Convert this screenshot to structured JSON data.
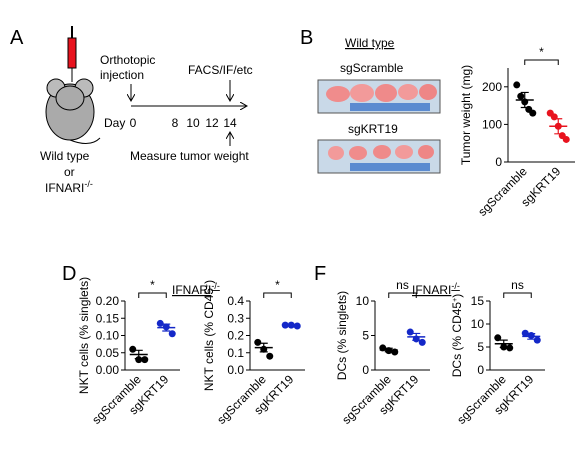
{
  "panels": {
    "A": {
      "label": "A",
      "injection_1": "Orthotopic",
      "injection_2": "injection",
      "harvest": "FACS/IF/etc",
      "day": "Day",
      "days": [
        "0",
        "8",
        "10",
        "12",
        "14"
      ],
      "measure": "Measure tumor weight",
      "mouse_1": "Wild type",
      "mouse_2": "or",
      "mouse_3": "IFNARI",
      "mouse_3_sup": "-/-"
    },
    "B": {
      "label": "B",
      "header": "Wild type",
      "photo_1": "sgScramble",
      "photo_2": "sgKRT19"
    },
    "D": {
      "label": "D",
      "header": "IFNARI",
      "header_sup": "-/-"
    },
    "F": {
      "label": "F",
      "header": "IFNARI",
      "header_sup": "-/-"
    }
  },
  "chart_data": [
    {
      "type": "dot",
      "ylabel": "Tumor weight (mg)",
      "categories": [
        "sgScramble",
        "sgKRT19"
      ],
      "colors": [
        "#000000",
        "#e8131e"
      ],
      "points": [
        [
          205,
          175,
          160,
          140,
          130
        ],
        [
          130,
          120,
          95,
          70,
          60
        ]
      ],
      "means": [
        165,
        95
      ],
      "errors": [
        20,
        20
      ],
      "ylim": [
        0,
        250
      ],
      "yticks": [
        0,
        100,
        200
      ],
      "significance": "*"
    },
    {
      "type": "dot",
      "ylabel": "NKT cells (% singlets)",
      "categories": [
        "sgScramble",
        "sgKRT19"
      ],
      "colors": [
        "#000000",
        "#1428c8"
      ],
      "points": [
        [
          0.06,
          0.03,
          0.03
        ],
        [
          0.135,
          0.125,
          0.105
        ]
      ],
      "means": [
        0.045,
        0.123
      ],
      "errors": [
        0.012,
        0.01
      ],
      "ylim": [
        0,
        0.2
      ],
      "yticks": [
        {
          "value": 0,
          "label": "0.00"
        },
        {
          "value": 0.05,
          "label": "0.05"
        },
        {
          "value": 0.1,
          "label": "0.10"
        },
        {
          "value": 0.15,
          "label": "0.15"
        },
        {
          "value": 0.2,
          "label": "0.20"
        }
      ],
      "significance": "*"
    },
    {
      "type": "dot",
      "ylabel": "NKT cells (% CD45",
      "ylabel_sup": "+",
      "ylabel_end": ")",
      "categories": [
        "sgScramble",
        "sgKRT19"
      ],
      "colors": [
        "#000000",
        "#1428c8"
      ],
      "points": [
        [
          0.16,
          0.12,
          0.08
        ],
        [
          0.26,
          0.26,
          0.255
        ]
      ],
      "means": [
        0.13,
        0.26
      ],
      "errors": [
        0.025,
        0.003
      ],
      "ylim": [
        0,
        0.4
      ],
      "yticks": [
        {
          "value": 0,
          "label": "0.0"
        },
        0.1,
        0.2,
        0.3,
        0.4
      ],
      "significance": "*"
    },
    {
      "type": "dot",
      "ylabel": "DCs (% singlets)",
      "categories": [
        "sgScramble",
        "sgKRT19"
      ],
      "colors": [
        "#000000",
        "#1428c8"
      ],
      "points": [
        [
          3.2,
          2.8,
          2.6
        ],
        [
          5.5,
          4.5,
          4.0
        ]
      ],
      "means": [
        2.9,
        4.8
      ],
      "errors": [
        0.25,
        0.5
      ],
      "ylim": [
        0,
        10
      ],
      "yticks": [
        0,
        5,
        10
      ],
      "significance": "ns"
    },
    {
      "type": "dot",
      "ylabel": "DCs (% CD45",
      "ylabel_sup": "+",
      "ylabel_end": ")",
      "categories": [
        "sgScramble",
        "sgKRT19"
      ],
      "colors": [
        "#000000",
        "#1428c8"
      ],
      "points": [
        [
          7,
          5,
          4.8
        ],
        [
          8,
          7.5,
          6.5
        ]
      ],
      "means": [
        5.7,
        7.3
      ],
      "errors": [
        0.8,
        0.6
      ],
      "ylim": [
        0,
        15
      ],
      "yticks": [
        0,
        5,
        10,
        15
      ],
      "significance": "ns"
    }
  ]
}
